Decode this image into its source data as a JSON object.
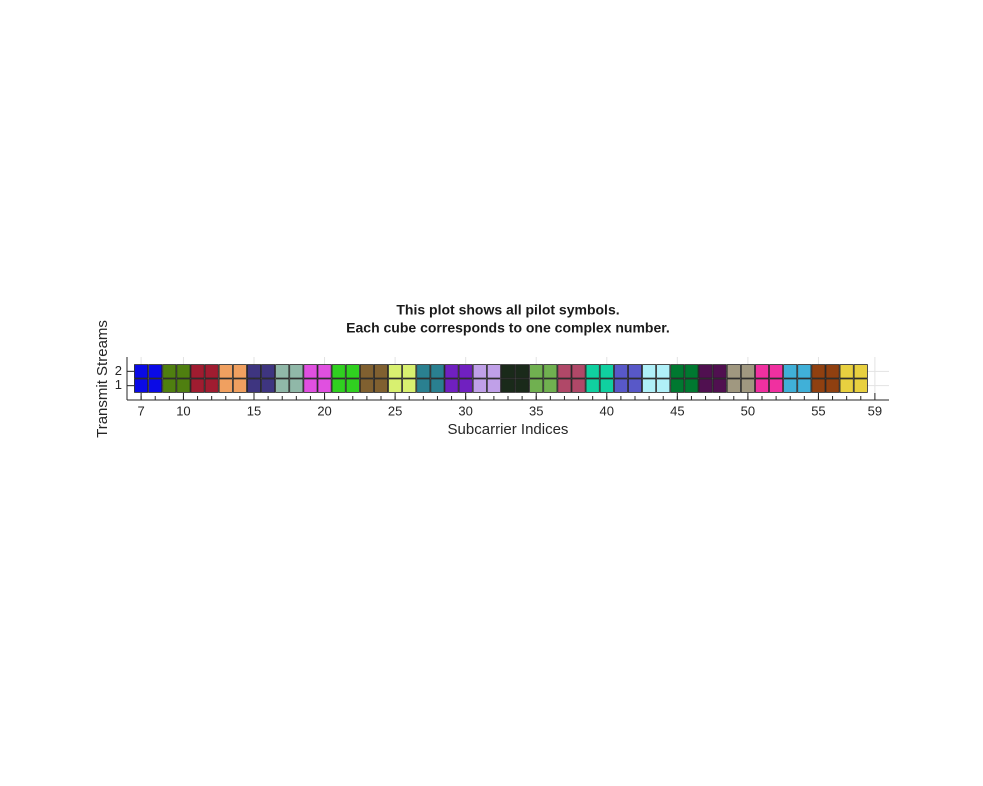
{
  "chart_data": {
    "type": "grid",
    "title": [
      "This plot shows all pilot symbols.",
      "Each cube corresponds to one complex number."
    ],
    "xlabel": "Subcarrier Indices",
    "ylabel": "Transmit Streams",
    "x": [
      7,
      8,
      9,
      10,
      11,
      12,
      13,
      14,
      15,
      16,
      17,
      18,
      19,
      20,
      21,
      22,
      23,
      24,
      25,
      26,
      27,
      28,
      29,
      30,
      31,
      32,
      33,
      34,
      35,
      36,
      37,
      38,
      39,
      40,
      41,
      42,
      43,
      44,
      45,
      46,
      47,
      48,
      49,
      50,
      51,
      52,
      53,
      54,
      55,
      56,
      57,
      58
    ],
    "streams": [
      1,
      2
    ],
    "colors": [
      "#0a0ae6",
      "#0a0ae6",
      "#4f7f10",
      "#4f7f10",
      "#a01c30",
      "#a01c30",
      "#f0a060",
      "#f0a060",
      "#3e3580",
      "#3e3580",
      "#90b8a8",
      "#90b8a8",
      "#e050e0",
      "#e050e0",
      "#30d020",
      "#30d020",
      "#806030",
      "#806030",
      "#d8f070",
      "#d8f070",
      "#2a8090",
      "#2a8090",
      "#7020c0",
      "#7020c0",
      "#c0a0e8",
      "#c0a0e8",
      "#1a2a1a",
      "#1a2a1a",
      "#70b050",
      "#70b050",
      "#b04868",
      "#b04868",
      "#10d0a0",
      "#10d0a0",
      "#5858c8",
      "#5858c8",
      "#b0f0f8",
      "#b0f0f8",
      "#007830",
      "#007830",
      "#501050",
      "#501050",
      "#a09880",
      "#a09880",
      "#f030a0",
      "#f030a0",
      "#40b0d8",
      "#40b0d8",
      "#904010",
      "#904010",
      "#e8d040",
      "#e8d040"
    ],
    "xlim": [
      6,
      60
    ],
    "ylim": [
      0,
      3
    ],
    "xticks": [
      7,
      10,
      15,
      20,
      25,
      30,
      35,
      40,
      45,
      50,
      55,
      59
    ],
    "yticks": [
      1,
      2
    ],
    "grid": true
  }
}
